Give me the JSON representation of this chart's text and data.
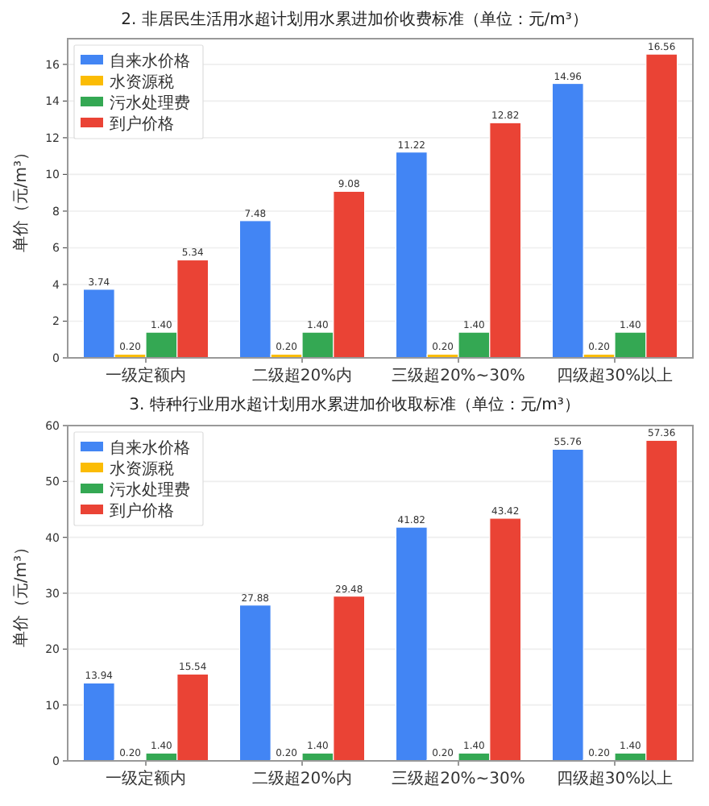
{
  "chart_data": [
    {
      "type": "bar",
      "title": "2. 非居民生活用水超计划用水累进加价收费标准（单位：元/m³）",
      "ylabel": "单价（元/m³）",
      "categories": [
        "一级定额内",
        "二级超20%内",
        "三级超20%~30%",
        "四级超30%以上"
      ],
      "series": [
        {
          "name": "自来水价格",
          "color": "#4285f4",
          "values": [
            3.74,
            7.48,
            11.22,
            14.96
          ],
          "value_labels": [
            "3.74",
            "7.48",
            "11.22",
            "14.96"
          ]
        },
        {
          "name": "水资源税",
          "color": "#fbbc05",
          "values": [
            0.2,
            0.2,
            0.2,
            0.2
          ],
          "value_labels": [
            "0.20",
            "0.20",
            "0.20",
            "0.20"
          ]
        },
        {
          "name": "污水处理费",
          "color": "#34a853",
          "values": [
            1.4,
            1.4,
            1.4,
            1.4
          ],
          "value_labels": [
            "1.40",
            "1.40",
            "1.40",
            "1.40"
          ]
        },
        {
          "name": "到户价格",
          "color": "#ea4335",
          "values": [
            5.34,
            9.08,
            12.82,
            16.56
          ],
          "value_labels": [
            "5.34",
            "9.08",
            "12.82",
            "16.56"
          ]
        }
      ],
      "ylim": [
        0,
        17.4
      ],
      "yticks": [
        0,
        2,
        4,
        6,
        8,
        10,
        12,
        14,
        16
      ],
      "grid": "y",
      "legend": "top left"
    },
    {
      "type": "bar",
      "title": "3. 特种行业用水超计划用水累进加价收取标准（单位：元/m³）",
      "ylabel": "单价（元/m³）",
      "categories": [
        "一级定额内",
        "二级超20%内",
        "三级超20%~30%",
        "四级超30%以上"
      ],
      "series": [
        {
          "name": "自来水价格",
          "color": "#4285f4",
          "values": [
            13.94,
            27.88,
            41.82,
            55.76
          ],
          "value_labels": [
            "13.94",
            "27.88",
            "41.82",
            "55.76"
          ]
        },
        {
          "name": "水资源税",
          "color": "#fbbc05",
          "values": [
            0.2,
            0.2,
            0.2,
            0.2
          ],
          "value_labels": [
            "0.20",
            "0.20",
            "0.20",
            "0.20"
          ]
        },
        {
          "name": "污水处理费",
          "color": "#34a853",
          "values": [
            1.4,
            1.4,
            1.4,
            1.4
          ],
          "value_labels": [
            "1.40",
            "1.40",
            "1.40",
            "1.40"
          ]
        },
        {
          "name": "到户价格",
          "color": "#ea4335",
          "values": [
            15.54,
            29.48,
            43.42,
            57.36
          ],
          "value_labels": [
            "15.54",
            "29.48",
            "43.42",
            "57.36"
          ]
        }
      ],
      "ylim": [
        0,
        60
      ],
      "yticks": [
        0,
        10,
        20,
        30,
        40,
        50,
        60
      ],
      "grid": "y",
      "legend": "top left"
    }
  ]
}
